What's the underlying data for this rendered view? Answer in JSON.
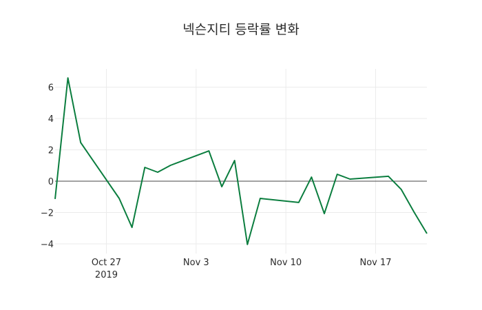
{
  "chart_data": {
    "type": "line",
    "title": "넥슨지티 등락률 변화",
    "xlabel": "",
    "ylabel": "",
    "x": [
      "2019-10-23",
      "2019-10-24",
      "2019-10-25",
      "2019-10-28",
      "2019-10-29",
      "2019-10-30",
      "2019-10-31",
      "2019-11-01",
      "2019-11-04",
      "2019-11-05",
      "2019-11-06",
      "2019-11-07",
      "2019-11-08",
      "2019-11-11",
      "2019-11-12",
      "2019-11-13",
      "2019-11-14",
      "2019-11-15",
      "2019-11-18",
      "2019-11-19",
      "2019-11-20",
      "2019-11-21"
    ],
    "series": [
      {
        "name": "등락률",
        "color": "#0a7d3e",
        "values": [
          -1.14,
          6.59,
          2.46,
          -1.1,
          -2.95,
          0.88,
          0.57,
          1.01,
          1.93,
          -0.35,
          1.32,
          -4.04,
          -1.1,
          -1.36,
          0.26,
          -2.07,
          0.44,
          0.13,
          0.31,
          -0.53,
          -1.98,
          -3.34
        ]
      }
    ],
    "xlim": [
      "2019-10-23",
      "2019-11-21"
    ],
    "ylim": [
      -4.5,
      7.0
    ],
    "yticks": [
      -4,
      -2,
      0,
      2,
      4,
      6
    ],
    "ytick_labels": [
      "−4",
      "−2",
      "0",
      "2",
      "4",
      "6"
    ],
    "xticks": [
      "2019-10-27",
      "2019-11-03",
      "2019-11-10",
      "2019-11-17"
    ],
    "xtick_labels": [
      "Oct 27",
      "Nov 3",
      "Nov 10",
      "Nov 17"
    ],
    "xtick_sublabel": "2019",
    "grid": true,
    "zero_line": true,
    "legend": false
  },
  "colors": {
    "line": "#0a7d3e",
    "grid": "#ebebeb",
    "zero_line": "#444444",
    "text": "#2a2a2a"
  }
}
